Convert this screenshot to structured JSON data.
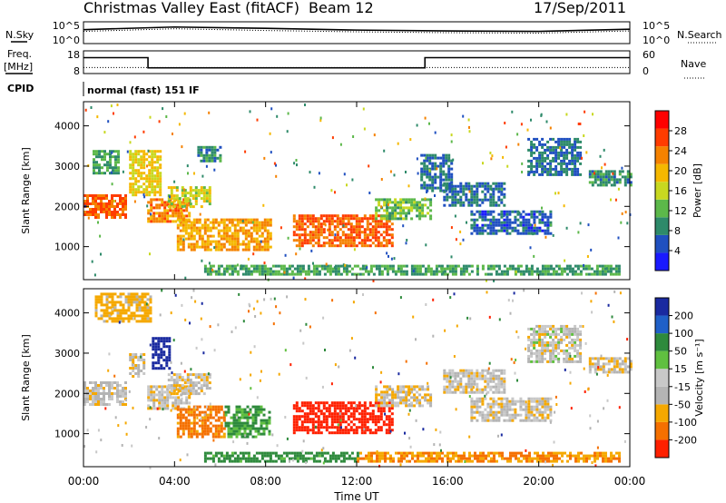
{
  "header": {
    "title": "Christmas Valley East (fitACF)",
    "beam": "Beam 12",
    "date": "17/Sep/2011"
  },
  "strip_labels": {
    "nsky": "N.Sky",
    "nsearch": "N.Search",
    "freq_line1": "Freq.",
    "freq_line2": "[MHz]",
    "nave": "Nave",
    "cpid": "CPID",
    "cpid_value": "normal (fast) 151 IF"
  },
  "noise_ticks": {
    "left": [
      "10^5",
      "10^0"
    ],
    "right": [
      "10^5",
      "10^0"
    ]
  },
  "freq_ticks": {
    "left": [
      "18",
      "8"
    ],
    "right": [
      "60",
      "0"
    ]
  },
  "colors": {
    "axis": "#000000",
    "power_scale": [
      "#1a1aff",
      "#2050c0",
      "#2e8a6a",
      "#5cb84a",
      "#c8d820",
      "#f5b800",
      "#f58200",
      "#ff3c00",
      "#ff0000"
    ],
    "velocity_scale": [
      "#1a2aa0",
      "#2060c8",
      "#2e8a3c",
      "#60c040",
      "#c8c8c8",
      "#b4b4b4",
      "#f5a800",
      "#f57000",
      "#ff2000"
    ]
  },
  "chart_data": [
    {
      "type": "line",
      "name": "noise-panel",
      "x": [
        "00:00",
        "04:00",
        "08:00",
        "12:00",
        "16:00",
        "20:00",
        "00:00"
      ],
      "series": [
        {
          "name": "N.Sky",
          "values": [
            3.2,
            3.8,
            3.5,
            3.1,
            2.9,
            2.8,
            3.3
          ]
        },
        {
          "name": "N.Search",
          "values": [
            2.8,
            3.4,
            3.0,
            2.7,
            2.5,
            2.4,
            2.9
          ]
        }
      ],
      "ylim_left": [
        0,
        5
      ],
      "ylim_right": [
        0,
        5
      ]
    },
    {
      "type": "line",
      "name": "freq-nave-panel",
      "series": [
        {
          "name": "Freq.",
          "x": [
            "00:00",
            "02:50",
            "02:50",
            "15:00",
            "15:00",
            "24:00"
          ],
          "values": [
            15,
            15,
            10.5,
            10.5,
            15,
            15
          ]
        },
        {
          "name": "Nave",
          "x": [
            "00:00",
            "24:00"
          ],
          "values": [
            16,
            16
          ]
        }
      ],
      "ylim_left": [
        8,
        18
      ],
      "ylim_right": [
        0,
        60
      ]
    },
    {
      "type": "heatmap",
      "name": "power-panel",
      "x_range_hours": [
        0,
        24
      ],
      "y_range_km": [
        180,
        4600
      ],
      "ylabel": "Slant Range [km]",
      "yticks": [
        1000,
        2000,
        3000,
        4000
      ],
      "colorbar_label": "Power [dB]",
      "colorbar_ticks": [
        4,
        8,
        12,
        16,
        20,
        24,
        28
      ],
      "colorbar_range": [
        0,
        32
      ],
      "regions": [
        {
          "t0": 0.0,
          "t1": 1.8,
          "r0": 1700,
          "r1": 2300,
          "v": 26
        },
        {
          "t0": 0.4,
          "t1": 1.5,
          "r0": 2800,
          "r1": 3400,
          "v": 10
        },
        {
          "t0": 2.0,
          "t1": 3.4,
          "r0": 2300,
          "r1": 3400,
          "v": 18
        },
        {
          "t0": 2.8,
          "t1": 4.6,
          "r0": 1600,
          "r1": 2200,
          "v": 24
        },
        {
          "t0": 3.7,
          "t1": 5.5,
          "r0": 2000,
          "r1": 2500,
          "v": 16
        },
        {
          "t0": 4.1,
          "t1": 8.2,
          "r0": 900,
          "r1": 1700,
          "v": 22
        },
        {
          "t0": 5.0,
          "t1": 6.0,
          "r0": 3100,
          "r1": 3500,
          "v": 8
        },
        {
          "t0": 9.2,
          "t1": 13.6,
          "r0": 1000,
          "r1": 1800,
          "v": 26
        },
        {
          "t0": 12.8,
          "t1": 15.2,
          "r0": 1700,
          "r1": 2200,
          "v": 12
        },
        {
          "t0": 14.8,
          "t1": 16.2,
          "r0": 2400,
          "r1": 3300,
          "v": 6
        },
        {
          "t0": 15.8,
          "t1": 18.5,
          "r0": 2000,
          "r1": 2600,
          "v": 6
        },
        {
          "t0": 17.0,
          "t1": 20.5,
          "r0": 1300,
          "r1": 1900,
          "v": 5
        },
        {
          "t0": 19.5,
          "t1": 21.8,
          "r0": 2800,
          "r1": 3700,
          "v": 6
        },
        {
          "t0": 22.2,
          "t1": 24.0,
          "r0": 2500,
          "r1": 2900,
          "v": 8
        },
        {
          "t0": 5.3,
          "t1": 23.5,
          "r0": 300,
          "r1": 550,
          "v": 10
        }
      ]
    },
    {
      "type": "heatmap",
      "name": "velocity-panel",
      "x_range_hours": [
        0,
        24
      ],
      "y_range_km": [
        180,
        4600
      ],
      "ylabel": "Slant Range [km]",
      "yticks": [
        1000,
        2000,
        3000,
        4000
      ],
      "xticks": [
        "00:00",
        "04:00",
        "08:00",
        "12:00",
        "16:00",
        "20:00",
        "00:00"
      ],
      "xlabel": "Time UT",
      "colorbar_label": "Velocity [m s^-1]",
      "colorbar_ticks": [
        200,
        100,
        50,
        15,
        -15,
        -50,
        -100,
        -200
      ],
      "regions": [
        {
          "t0": 0.0,
          "t1": 1.8,
          "r0": 1700,
          "r1": 2300,
          "v": -5
        },
        {
          "t0": 2.0,
          "t1": 2.7,
          "r0": 2400,
          "r1": 3000,
          "v": -5
        },
        {
          "t0": 3.0,
          "t1": 3.8,
          "r0": 2600,
          "r1": 3400,
          "v": 180
        },
        {
          "t0": 2.8,
          "t1": 4.6,
          "r0": 1600,
          "r1": 2200,
          "v": -8
        },
        {
          "t0": 3.7,
          "t1": 5.5,
          "r0": 2000,
          "r1": 2500,
          "v": -5
        },
        {
          "t0": 4.1,
          "t1": 6.2,
          "r0": 900,
          "r1": 1700,
          "v": -60
        },
        {
          "t0": 6.2,
          "t1": 8.2,
          "r0": 900,
          "r1": 1700,
          "v": 40
        },
        {
          "t0": 9.2,
          "t1": 13.6,
          "r0": 1000,
          "r1": 1800,
          "v": -120
        },
        {
          "t0": 12.8,
          "t1": 15.2,
          "r0": 1700,
          "r1": 2200,
          "v": -10
        },
        {
          "t0": 15.8,
          "t1": 18.5,
          "r0": 2000,
          "r1": 2600,
          "v": -5
        },
        {
          "t0": 17.0,
          "t1": 20.5,
          "r0": 1300,
          "r1": 1900,
          "v": -5
        },
        {
          "t0": 19.5,
          "t1": 21.8,
          "r0": 2800,
          "r1": 3700,
          "v": 0
        },
        {
          "t0": 22.2,
          "t1": 24.0,
          "r0": 2500,
          "r1": 2900,
          "v": -10
        },
        {
          "t0": 5.3,
          "t1": 12.0,
          "r0": 300,
          "r1": 550,
          "v": 50
        },
        {
          "t0": 12.0,
          "t1": 23.5,
          "r0": 300,
          "r1": 550,
          "v": -50
        },
        {
          "t0": 0.5,
          "t1": 3.0,
          "r0": 3800,
          "r1": 4500,
          "v": -30
        }
      ]
    }
  ],
  "time_axis": {
    "ticks": [
      "00:00",
      "04:00",
      "08:00",
      "12:00",
      "16:00",
      "20:00",
      "00:00"
    ],
    "label": "Time UT"
  },
  "power_colorbar": {
    "label": "Power [dB]",
    "ticks": [
      "4",
      "8",
      "12",
      "16",
      "20",
      "24",
      "28"
    ]
  },
  "velocity_colorbar": {
    "label": "Velocity [m s⁻¹]",
    "ticks": [
      "200",
      "100",
      "50",
      "15",
      "-15",
      "-50",
      "-100",
      "-200"
    ]
  }
}
